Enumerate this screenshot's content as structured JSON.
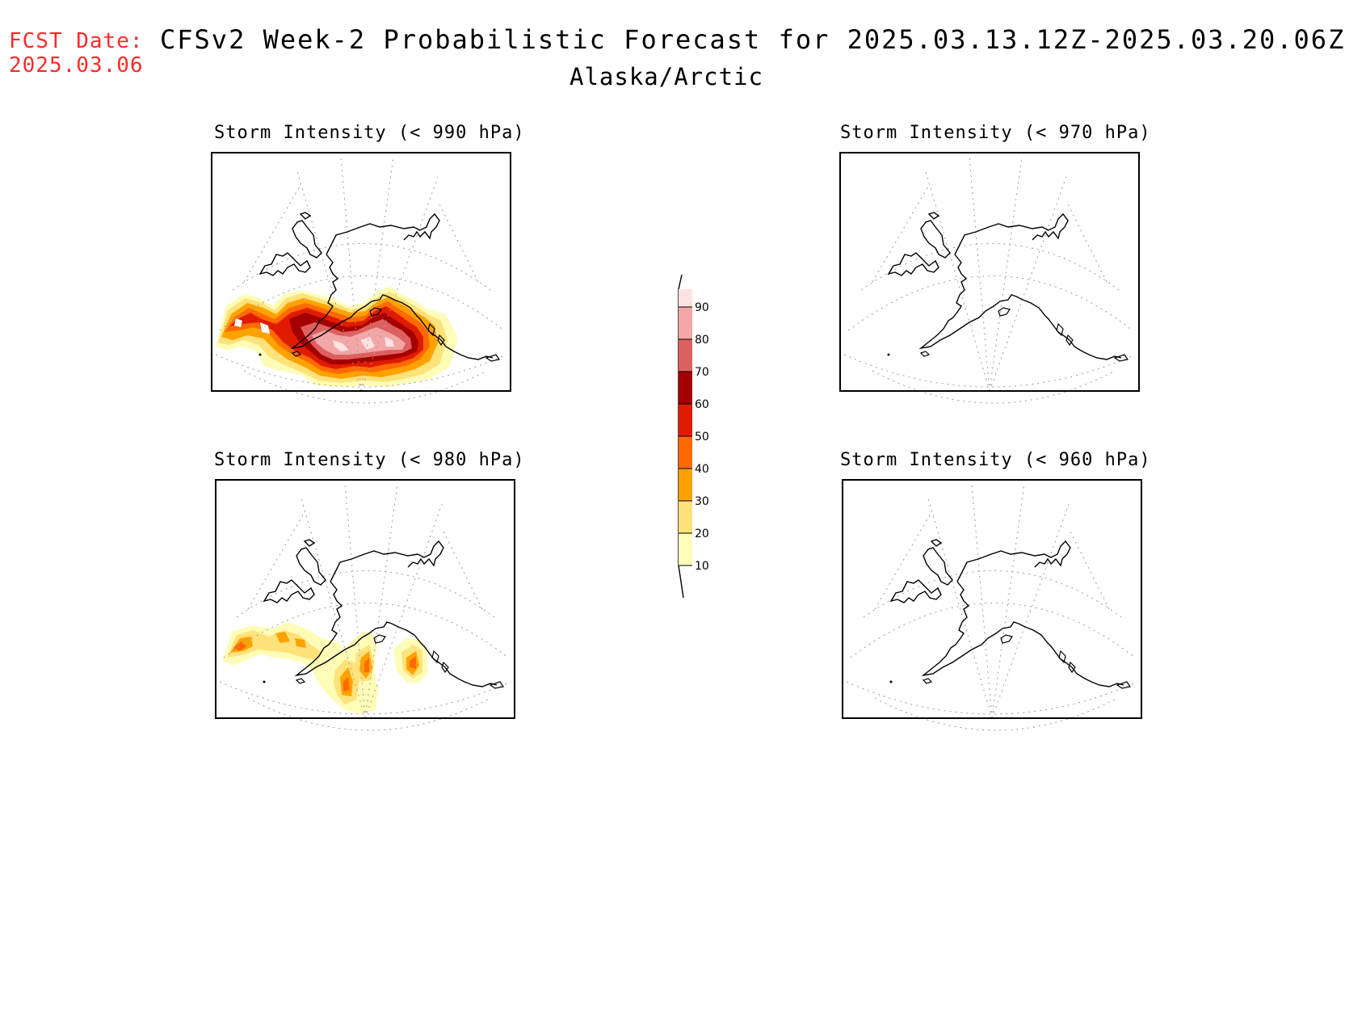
{
  "header": {
    "fcst_label": "FCST Date:",
    "fcst_date": "2025.03.06",
    "title": "CFSv2 Week-2 Probabilistic Forecast for 2025.03.13.12Z-2025.03.20.06Z",
    "region": "Alaska/Arctic"
  },
  "panels": [
    {
      "title": "Storm Intensity (< 990 hPa)",
      "has_shading": true
    },
    {
      "title": "Storm Intensity (< 970 hPa)",
      "has_shading": false
    },
    {
      "title": "Storm Intensity (< 980 hPa)",
      "has_shading": true
    },
    {
      "title": "Storm Intensity (< 960 hPa)",
      "has_shading": false
    }
  ],
  "colorbar": {
    "levels": [
      "10",
      "20",
      "30",
      "40",
      "50",
      "60",
      "70",
      "80",
      "90"
    ],
    "colors": [
      "#fffcb8",
      "#ffe27a",
      "#ffa200",
      "#ff6a00",
      "#e01b00",
      "#a50000",
      "#dd6060",
      "#f3a6a6",
      "#ffe2e2"
    ]
  }
}
